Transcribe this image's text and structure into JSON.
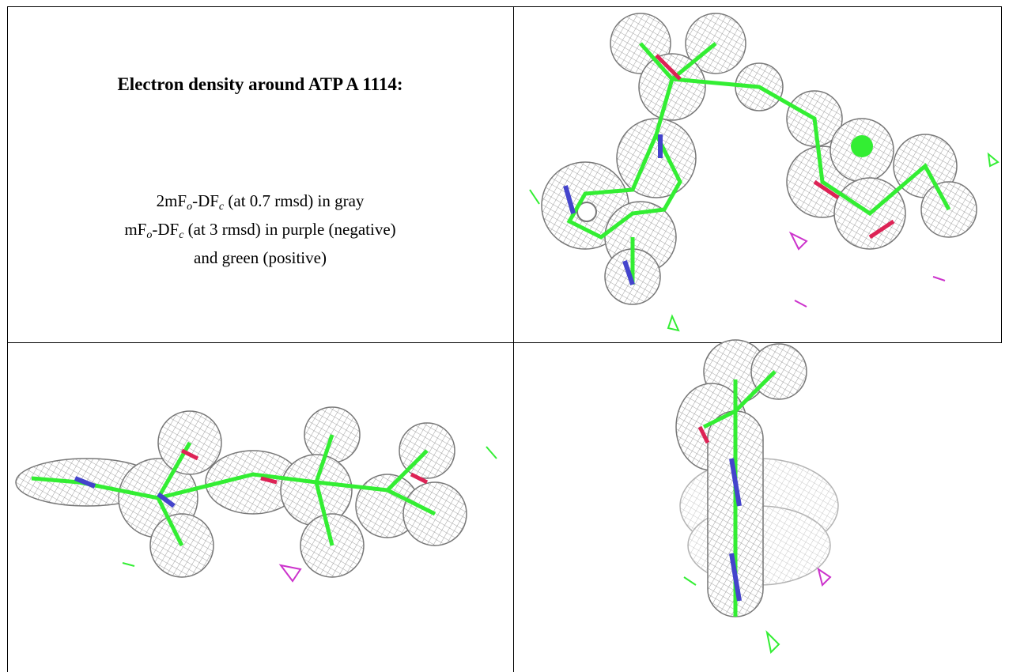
{
  "caption": {
    "title": "Electron density around ATP A 1114:",
    "line1": [
      "2mF",
      "o",
      "-DF",
      "c",
      " (at 0.7 rmsd) in gray"
    ],
    "line2": [
      "mF",
      "o",
      "-DF",
      "c",
      " (at 3 rmsd) in purple (negative)"
    ],
    "line3": "and green (positive)"
  }
}
